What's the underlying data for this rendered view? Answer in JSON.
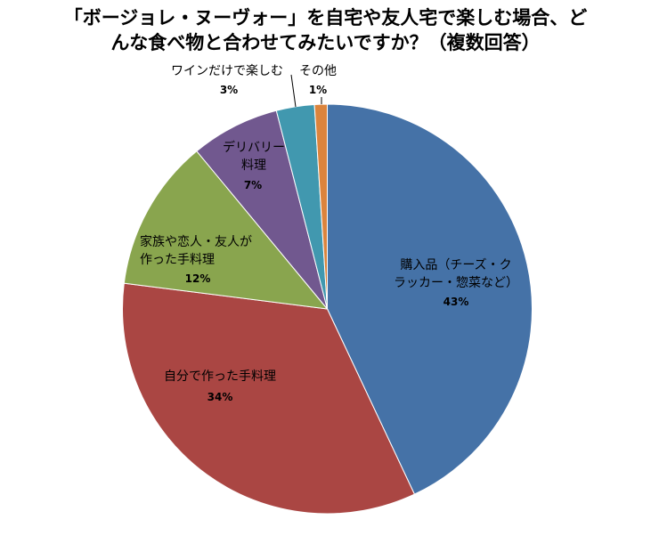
{
  "chart_data": {
    "type": "pie",
    "title": "「ボージョレ・ヌーヴォー」を自宅や友人宅で楽しむ場合、どんな食べ物と合わせてみたいですか？（複数回答）",
    "categories": [
      "購入品（チーズ・クラッカー・惣菜など）",
      "自分で作った手料理",
      "家族や恋人・友人が作った手料理",
      "デリバリー料理",
      "ワインだけで楽しむ",
      "その他"
    ],
    "values": [
      43,
      34,
      12,
      7,
      3,
      1
    ],
    "value_labels": [
      "43%",
      "34%",
      "12%",
      "7%",
      "3%",
      "1%"
    ],
    "colors": [
      "#4572A7",
      "#AA4643",
      "#89A54E",
      "#71588F",
      "#4198AF",
      "#DB843D"
    ],
    "legend": "none"
  }
}
